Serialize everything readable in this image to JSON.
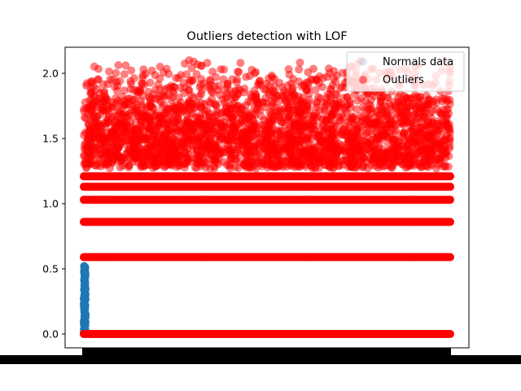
{
  "chart_data": {
    "type": "scatter",
    "title": "Outliers detection with LOF",
    "xlabel": "",
    "ylabel": "",
    "ylim": [
      -0.1,
      2.2
    ],
    "yticks": [
      0.0,
      0.5,
      1.0,
      1.5,
      2.0
    ],
    "ytick_labels": [
      "0.0",
      "0.5",
      "1.0",
      "1.5",
      "2.0"
    ],
    "grid": false,
    "legend_position": "top-right",
    "series": [
      {
        "name": "Normals data",
        "color": "#1f77b4",
        "description_x": "narrow column at the far left of the x range",
        "y_range": [
          0.0,
          0.52
        ]
      },
      {
        "name": "Outliers",
        "color": "#ff0000",
        "horizontal_bands_y": [
          0.0,
          0.59,
          0.86,
          1.03,
          1.13,
          1.21
        ],
        "scatter_cloud_y_range": [
          1.27,
          2.1
        ],
        "sparse_high_points_y": [
          2.09,
          2.1,
          2.08,
          2.07,
          2.08,
          2.06,
          2.04,
          2.03,
          2.01,
          1.99,
          1.98,
          1.96,
          1.95,
          1.93,
          1.92
        ]
      }
    ]
  }
}
